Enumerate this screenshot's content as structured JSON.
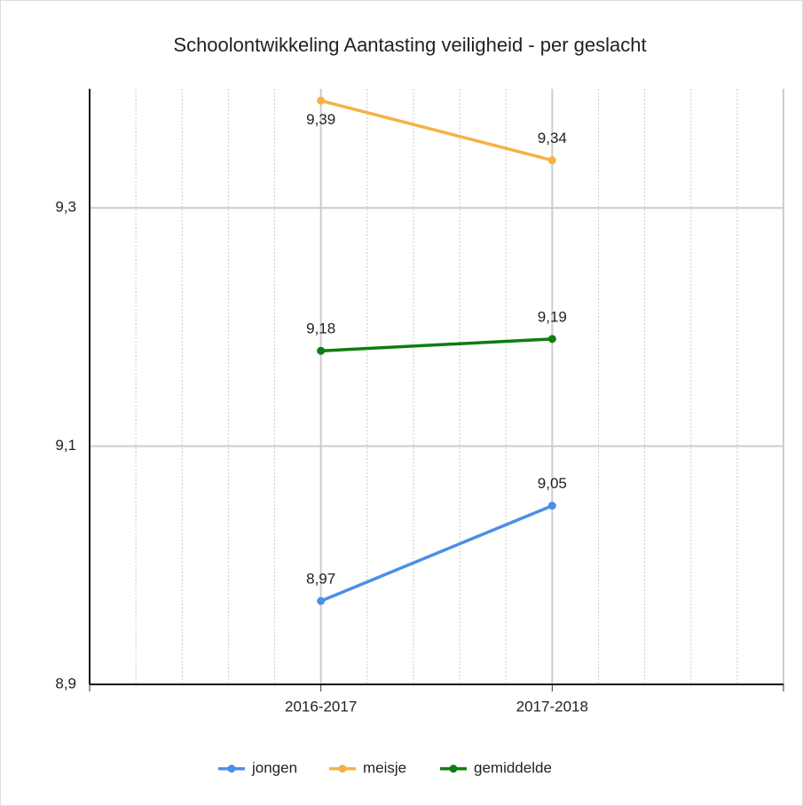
{
  "chart_data": {
    "type": "line",
    "title": "Schoolontwikkeling Aantasting veiligheid - per geslacht",
    "categories": [
      null,
      "2016-2017",
      "2017-2018",
      null
    ],
    "series": [
      {
        "name": "jongen",
        "color": "#4a8fe7",
        "values": [
          null,
          8.97,
          9.05,
          null
        ],
        "value_labels": [
          null,
          "8,97",
          "9,05",
          null
        ]
      },
      {
        "name": "meisje",
        "color": "#f4b245",
        "values": [
          null,
          9.39,
          9.34,
          null
        ],
        "value_labels": [
          null,
          "9,39",
          "9,34",
          null
        ]
      },
      {
        "name": "gemiddelde",
        "color": "#0e7d0e",
        "values": [
          null,
          9.18,
          9.19,
          null
        ],
        "value_labels": [
          null,
          "9,18",
          "9,19",
          null
        ]
      }
    ],
    "ylim": [
      8.9,
      9.4
    ],
    "yticks": [
      {
        "value": 8.9,
        "label": "8,9"
      },
      {
        "value": 9.1,
        "label": "9,1"
      },
      {
        "value": 9.3,
        "label": "9,3"
      }
    ],
    "grid": true,
    "legend": "bottom"
  }
}
